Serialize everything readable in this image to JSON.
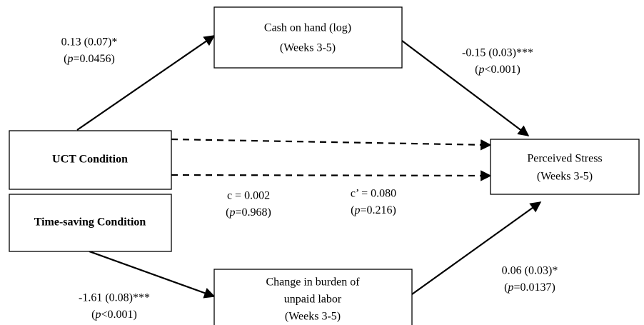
{
  "nodes": [
    {
      "lines": [
        "Cash on hand (log)",
        "(Weeks 3-5)"
      ]
    },
    {
      "lines": [
        "UCT Condition"
      ]
    },
    {
      "lines": [
        "Time-saving Condition"
      ]
    },
    {
      "lines": [
        "Perceived Stress",
        "(Weeks 3-5)"
      ]
    },
    {
      "lines": [
        "Change in burden of",
        "unpaid labor",
        "(Weeks 3-5)"
      ]
    }
  ],
  "edges": [
    {
      "estimate": "0.13 (0.07)*",
      "p": {
        "open": "(",
        "symbol": "p",
        "rest": "=0.0456)"
      }
    },
    {
      "estimate": "-0.15 (0.03)***",
      "p": {
        "open": "(",
        "symbol": "p",
        "rest": "<0.001)"
      }
    },
    {
      "estimate": "c = 0.002",
      "p": {
        "open": "(",
        "symbol": "p",
        "rest": "=0.968)"
      }
    },
    {
      "estimate": "c’ = 0.080",
      "p": {
        "open": "(",
        "symbol": "p",
        "rest": "=0.216)"
      }
    },
    {
      "estimate": "0.06 (0.03)*",
      "p": {
        "open": "(",
        "symbol": "p",
        "rest": "=0.0137)"
      }
    },
    {
      "estimate": "-1.61 (0.08)***",
      "p": {
        "open": "(",
        "symbol": "p",
        "rest": "<0.001)"
      }
    }
  ]
}
